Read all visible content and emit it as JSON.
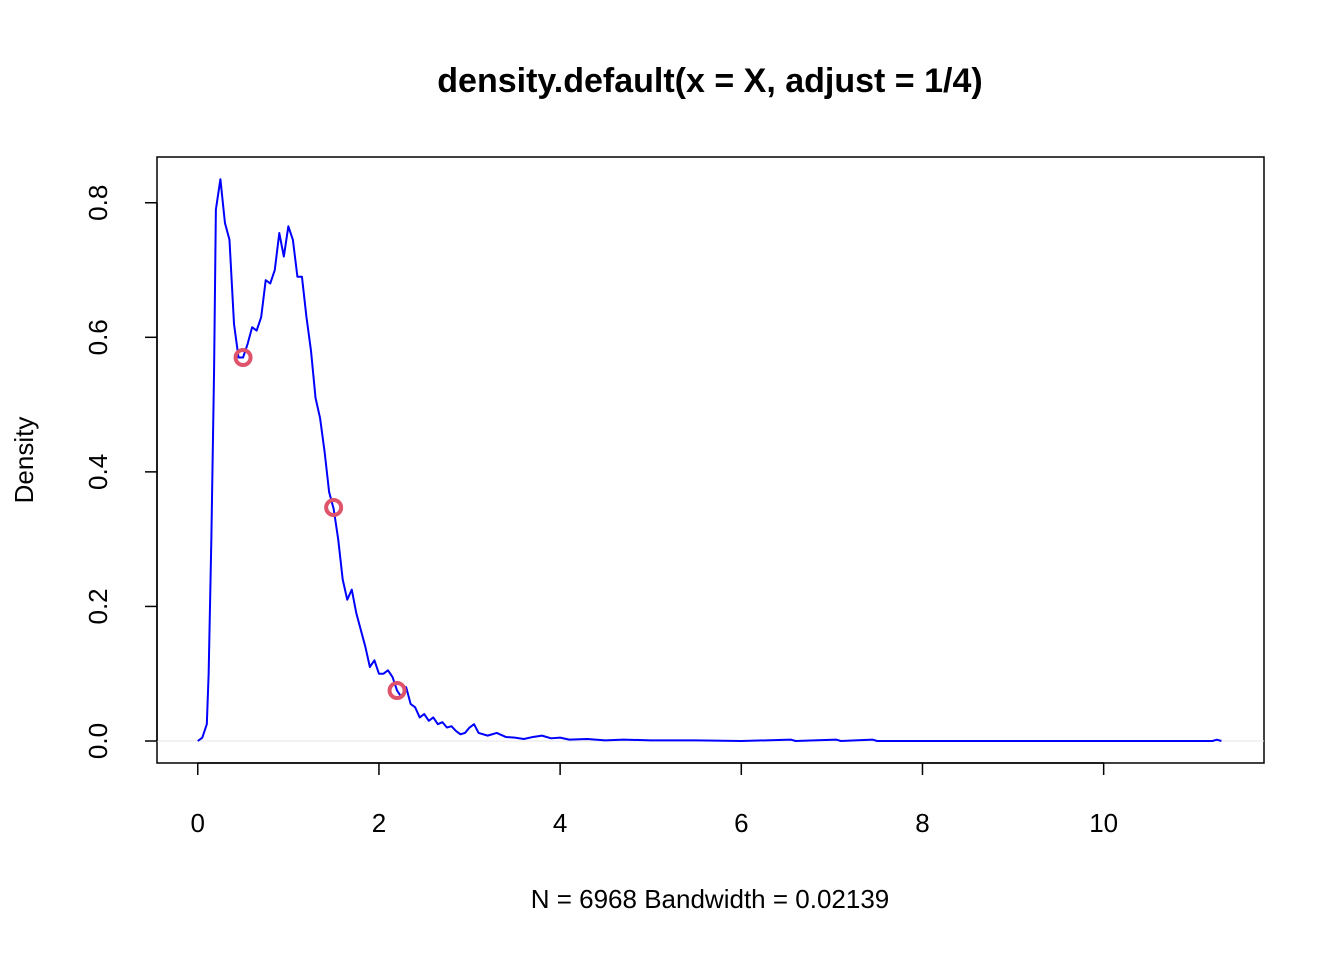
{
  "chart_data": {
    "type": "line",
    "title": "density.default(x = X, adjust = 1/4)",
    "x_label": "N = 6968   Bandwidth = 0.02139",
    "y_label": "Density",
    "color": "#0000ff",
    "x": [
      0.0,
      0.05,
      0.1,
      0.12,
      0.15,
      0.18,
      0.2,
      0.25,
      0.3,
      0.35,
      0.4,
      0.45,
      0.5,
      0.55,
      0.6,
      0.65,
      0.7,
      0.75,
      0.8,
      0.85,
      0.9,
      0.95,
      1.0,
      1.05,
      1.1,
      1.15,
      1.2,
      1.25,
      1.3,
      1.35,
      1.4,
      1.45,
      1.5,
      1.55,
      1.6,
      1.65,
      1.7,
      1.75,
      1.8,
      1.85,
      1.9,
      1.95,
      2.0,
      2.05,
      2.1,
      2.15,
      2.2,
      2.25,
      2.3,
      2.35,
      2.4,
      2.45,
      2.5,
      2.55,
      2.6,
      2.65,
      2.7,
      2.75,
      2.8,
      2.85,
      2.9,
      2.95,
      3.0,
      3.05,
      3.1,
      3.2,
      3.3,
      3.4,
      3.5,
      3.6,
      3.7,
      3.8,
      3.9,
      4.0,
      4.1,
      4.3,
      4.5,
      4.7,
      5.0,
      5.5,
      6.0,
      6.55,
      6.6,
      7.05,
      7.1,
      7.45,
      7.5,
      11.2,
      11.25,
      11.3
    ],
    "values": [
      0.0,
      0.005,
      0.025,
      0.1,
      0.3,
      0.55,
      0.79,
      0.835,
      0.77,
      0.745,
      0.62,
      0.57,
      0.57,
      0.59,
      0.615,
      0.61,
      0.63,
      0.685,
      0.68,
      0.7,
      0.755,
      0.72,
      0.765,
      0.745,
      0.69,
      0.69,
      0.63,
      0.58,
      0.51,
      0.48,
      0.43,
      0.37,
      0.345,
      0.3,
      0.24,
      0.21,
      0.225,
      0.19,
      0.165,
      0.14,
      0.11,
      0.12,
      0.1,
      0.1,
      0.105,
      0.095,
      0.075,
      0.065,
      0.08,
      0.055,
      0.05,
      0.035,
      0.04,
      0.03,
      0.035,
      0.025,
      0.028,
      0.02,
      0.022,
      0.015,
      0.01,
      0.012,
      0.02,
      0.025,
      0.012,
      0.008,
      0.012,
      0.006,
      0.005,
      0.003,
      0.006,
      0.008,
      0.004,
      0.005,
      0.002,
      0.003,
      0.001,
      0.002,
      0.001,
      0.001,
      0.0,
      0.002,
      0.0,
      0.002,
      0.0,
      0.002,
      0.0,
      0.0,
      0.002,
      0.0
    ],
    "points": {
      "color": "#df536b",
      "x": [
        0.5,
        1.5,
        2.2
      ],
      "y": [
        0.57,
        0.347,
        0.075
      ]
    },
    "xlim": [
      -0.45,
      11.77
    ],
    "ylim": [
      -0.0327,
      0.868
    ],
    "xticks": [
      0,
      2,
      4,
      6,
      8,
      10
    ],
    "yticks": [
      {
        "value": 0,
        "label": "0.0"
      },
      0.2,
      0.4,
      0.6,
      0.8
    ]
  }
}
